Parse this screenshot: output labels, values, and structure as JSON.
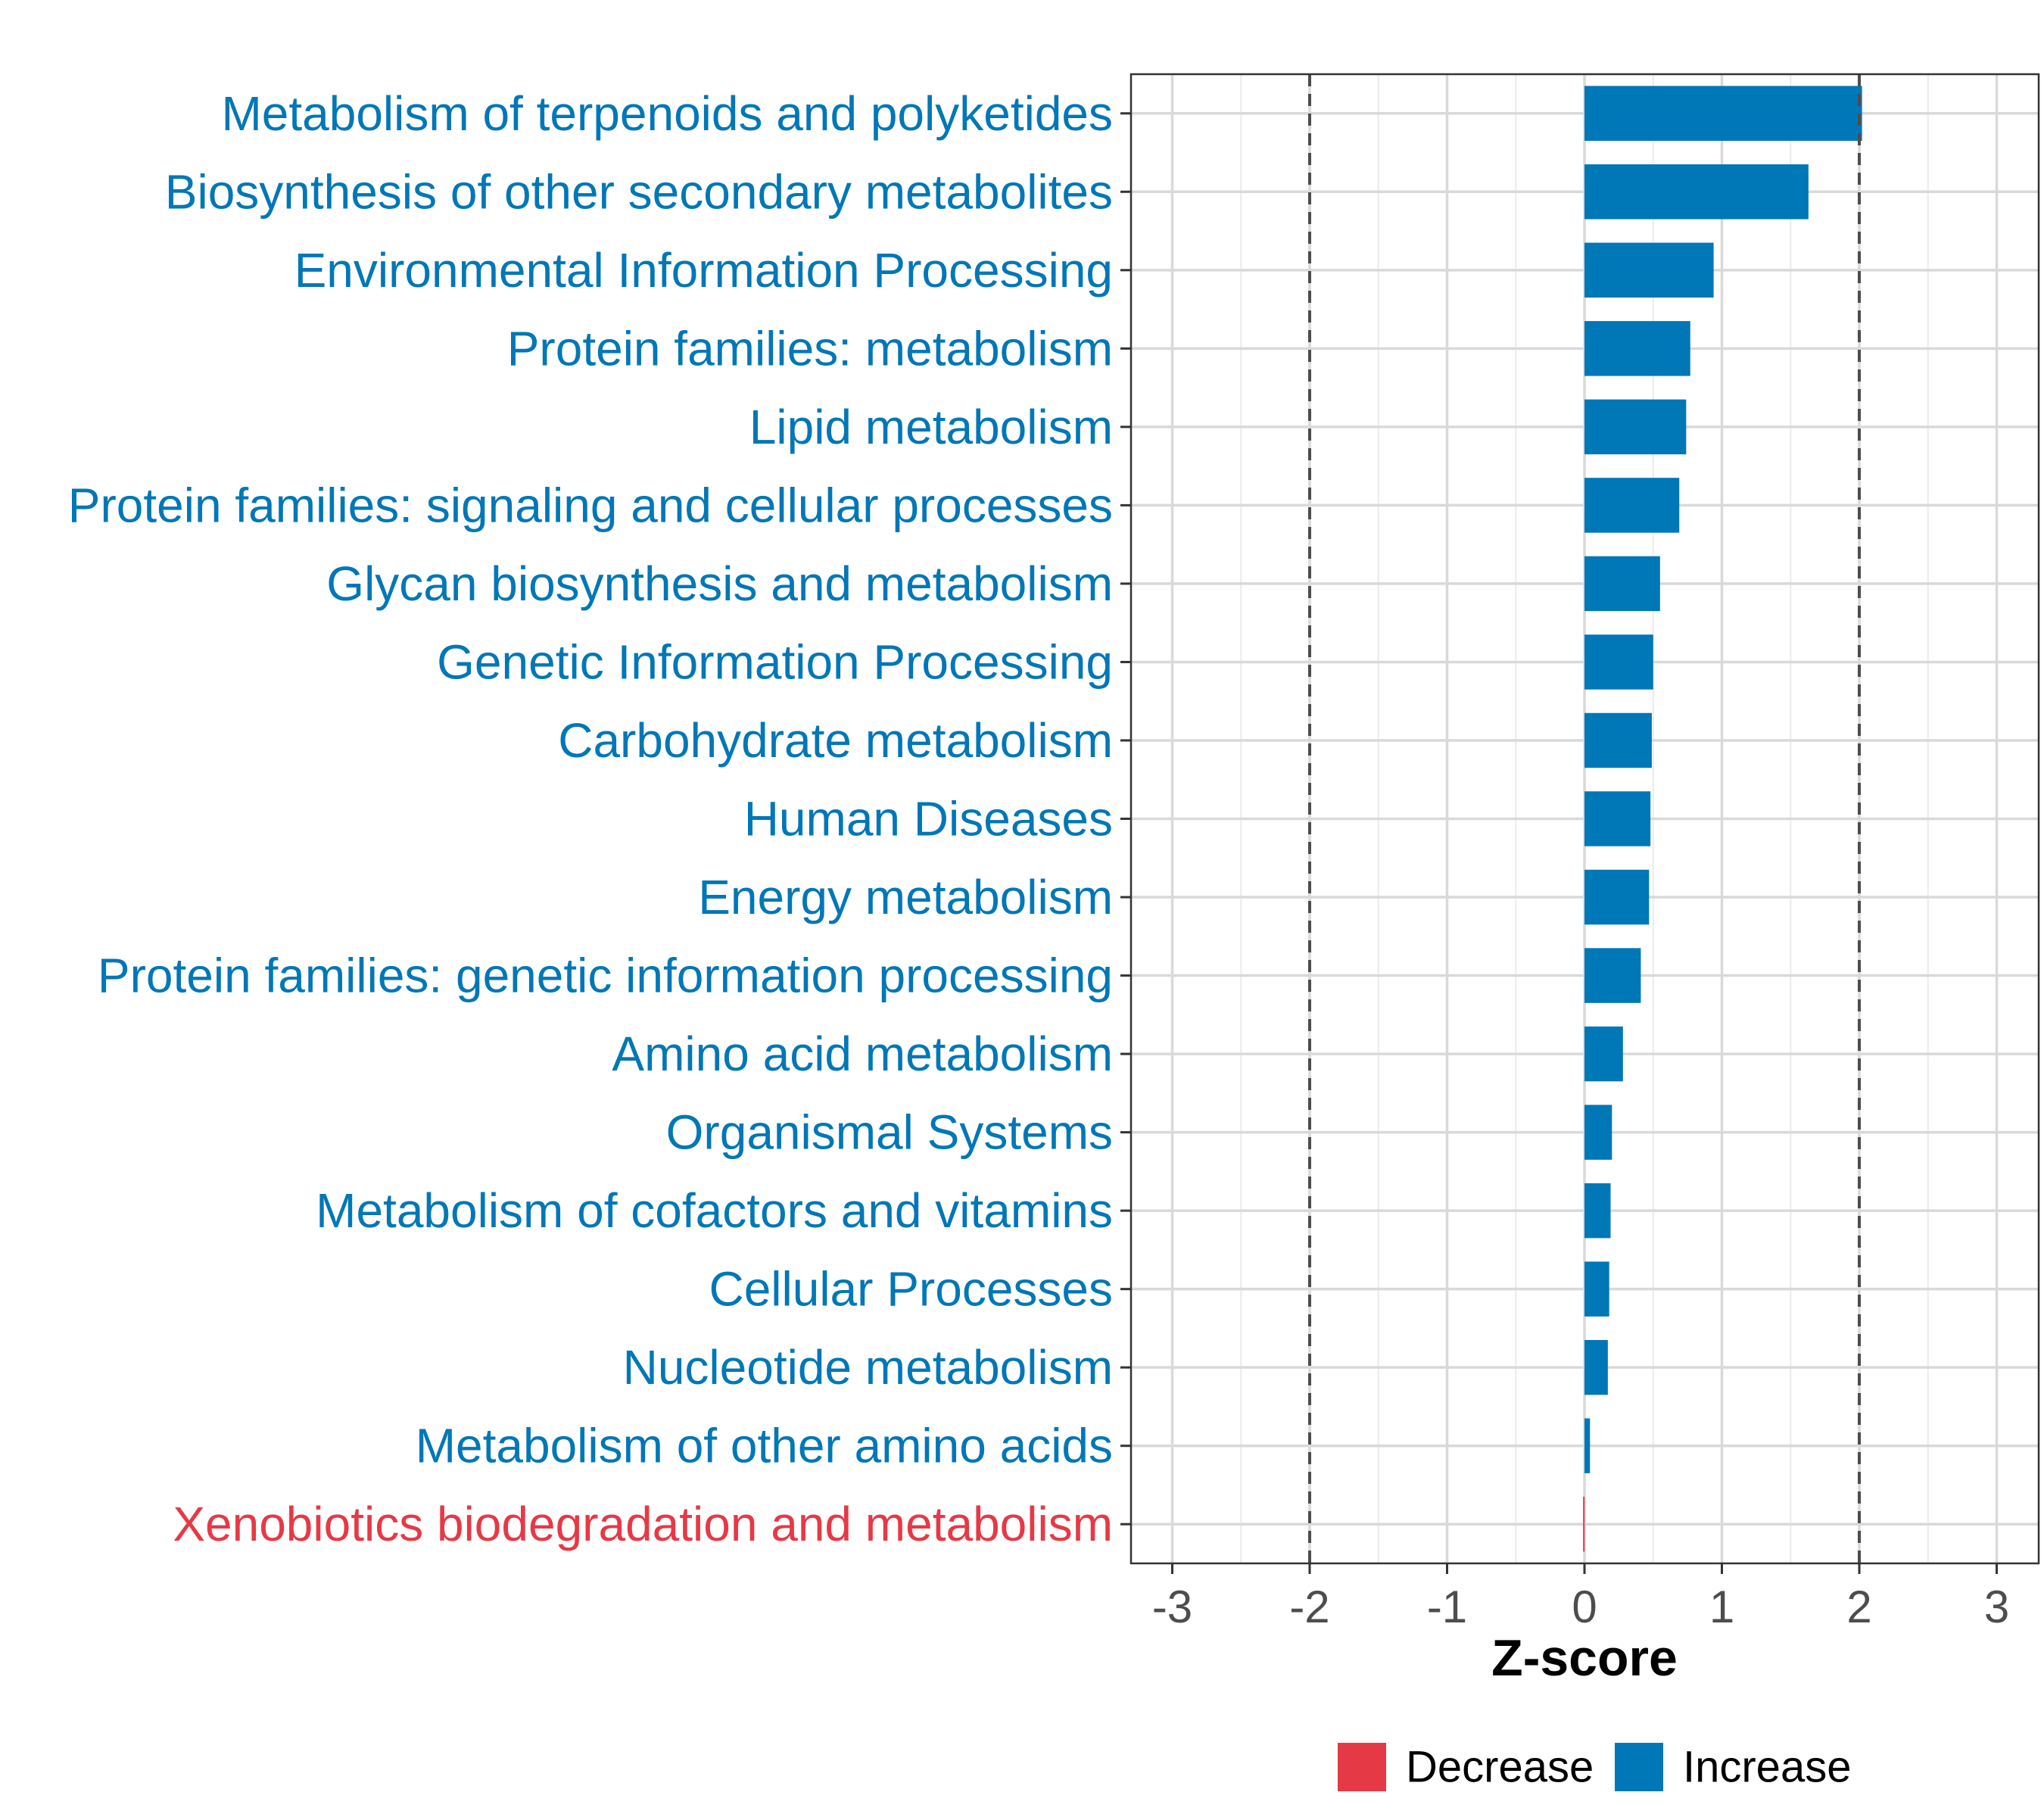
{
  "chart_data": {
    "type": "bar",
    "orientation": "horizontal",
    "xlabel": "Z-score",
    "xlim": [
      -3.3,
      3.3
    ],
    "xticks": [
      -3,
      -2,
      -1,
      0,
      1,
      2,
      3
    ],
    "tick_labels": [
      "-3",
      "-2",
      "-1",
      "0",
      "1",
      "2",
      "3"
    ],
    "reference_lines": [
      -2,
      2
    ],
    "grid": true,
    "colors": {
      "Decrease": "#e63946",
      "Increase": "#0077b6"
    },
    "legend": [
      {
        "name": "Decrease",
        "color": "#e63946"
      },
      {
        "name": "Increase",
        "color": "#0077b6"
      }
    ],
    "legend_position": "bottom",
    "categories": [
      "Metabolism of terpenoids and polyketides",
      "Biosynthesis of other secondary metabolites",
      "Environmental Information Processing",
      "Protein families: metabolism",
      "Lipid metabolism",
      "Protein families: signaling and cellular processes",
      "Glycan biosynthesis and metabolism",
      "Genetic Information Processing",
      "Carbohydrate metabolism",
      "Human Diseases",
      "Energy metabolism",
      "Protein families: genetic information processing",
      "Amino acid metabolism",
      "Organismal Systems",
      "Metabolism of cofactors and vitamins",
      "Cellular Processes",
      "Nucleotide metabolism",
      "Metabolism of other amino acids",
      "Xenobiotics biodegradation and metabolism"
    ],
    "values": [
      2.02,
      1.63,
      0.94,
      0.77,
      0.74,
      0.69,
      0.55,
      0.5,
      0.49,
      0.48,
      0.47,
      0.41,
      0.28,
      0.2,
      0.19,
      0.18,
      0.17,
      0.04,
      -0.01
    ],
    "groups": [
      "Increase",
      "Increase",
      "Increase",
      "Increase",
      "Increase",
      "Increase",
      "Increase",
      "Increase",
      "Increase",
      "Increase",
      "Increase",
      "Increase",
      "Increase",
      "Increase",
      "Increase",
      "Increase",
      "Increase",
      "Increase",
      "Decrease"
    ]
  }
}
